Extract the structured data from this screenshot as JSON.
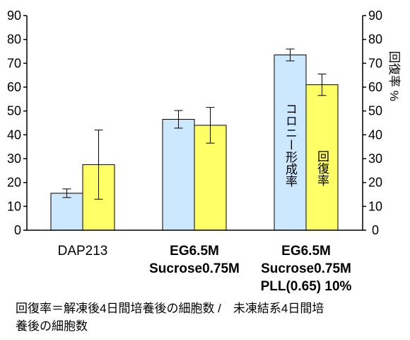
{
  "chart_data": {
    "type": "bar",
    "categories": [
      [
        "DAP213"
      ],
      [
        "EG6.5M",
        "Sucrose0.75M"
      ],
      [
        "EG6.5M",
        "Sucrose0.75M",
        "PLL(0.65) 10%"
      ]
    ],
    "series": [
      {
        "name": "コロニー形成率",
        "values": [
          15.5,
          46.5,
          73.5
        ],
        "errors": [
          1.8,
          3.7,
          2.5
        ],
        "color": "#CCE8FF"
      },
      {
        "name": "回復率",
        "values": [
          27.5,
          44,
          61
        ],
        "errors": [
          14.5,
          7.5,
          4.5
        ],
        "color": "#FFFF66"
      }
    ],
    "y_left": {
      "min": 0,
      "max": 90,
      "step": 10
    },
    "y_right": {
      "min": 0,
      "max": 90,
      "step": 10
    },
    "right_axis_label": "回復率 %",
    "grid": false,
    "footnote": [
      "回復率＝解凍後4日間培養後の細胞数 /　未凍結系4日間培",
      "養後の細胞数"
    ]
  },
  "colors": {
    "bar_blue": "#CCE8FF",
    "bar_yellow": "#FFFF66",
    "axis": "#000000"
  }
}
